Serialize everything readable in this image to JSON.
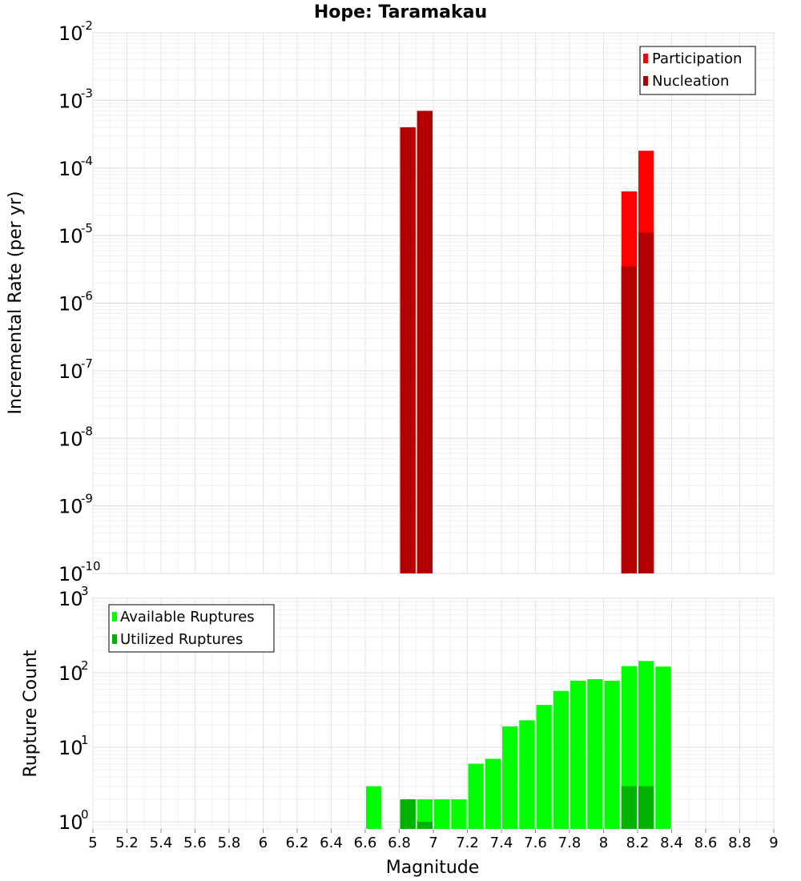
{
  "chart_data": [
    {
      "type": "bar",
      "title": "Hope: Taramakau",
      "xlabel": "",
      "ylabel": "Incremental Rate (per yr)",
      "yscale": "log",
      "xlim": [
        5,
        9
      ],
      "ylim": [
        1e-10,
        0.01
      ],
      "y_tick_exponents": [
        -10,
        -9,
        -8,
        -7,
        -6,
        -5,
        -4,
        -3,
        -2
      ],
      "grid": true,
      "legend_position": "top-right",
      "bar_width": 0.1,
      "series": [
        {
          "name": "Participation",
          "color": "#ff0000",
          "x": [
            6.85,
            6.95,
            8.15,
            8.25
          ],
          "values": [
            0.0004,
            0.0007,
            4.5e-05,
            0.00018
          ]
        },
        {
          "name": "Nucleation",
          "color": "#b20000",
          "x": [
            6.85,
            6.95,
            8.15,
            8.25
          ],
          "values": [
            0.0004,
            0.0007,
            3.5e-06,
            1.1e-05
          ]
        }
      ]
    },
    {
      "type": "bar",
      "title": "",
      "xlabel": "Magnitude",
      "ylabel": "Rupture Count",
      "yscale": "log",
      "xlim": [
        5,
        9
      ],
      "ylim": [
        0.8,
        1000
      ],
      "y_tick_exponents": [
        0,
        1,
        2,
        3
      ],
      "x_ticks": [
        "5",
        "5.2",
        "5.4",
        "5.6",
        "5.8",
        "6",
        "6.2",
        "6.4",
        "6.6",
        "6.8",
        "7",
        "7.2",
        "7.4",
        "7.6",
        "7.8",
        "8",
        "8.2",
        "8.4",
        "8.6",
        "8.8",
        "9"
      ],
      "grid": true,
      "legend_position": "top-left",
      "bar_width": 0.1,
      "series": [
        {
          "name": "Available Ruptures",
          "color": "#00ff00",
          "x": [
            6.65,
            6.85,
            6.95,
            7.05,
            7.15,
            7.25,
            7.35,
            7.45,
            7.55,
            7.65,
            7.75,
            7.85,
            7.95,
            8.05,
            8.15,
            8.25,
            8.35
          ],
          "values": [
            3,
            2,
            2,
            2,
            2,
            6,
            7,
            19,
            23,
            37,
            57,
            78,
            82,
            78,
            123,
            144,
            121
          ]
        },
        {
          "name": "Utilized Ruptures",
          "color": "#00b200",
          "x": [
            6.85,
            6.95,
            8.15,
            8.25
          ],
          "values": [
            2,
            1,
            3,
            3
          ]
        }
      ]
    }
  ]
}
